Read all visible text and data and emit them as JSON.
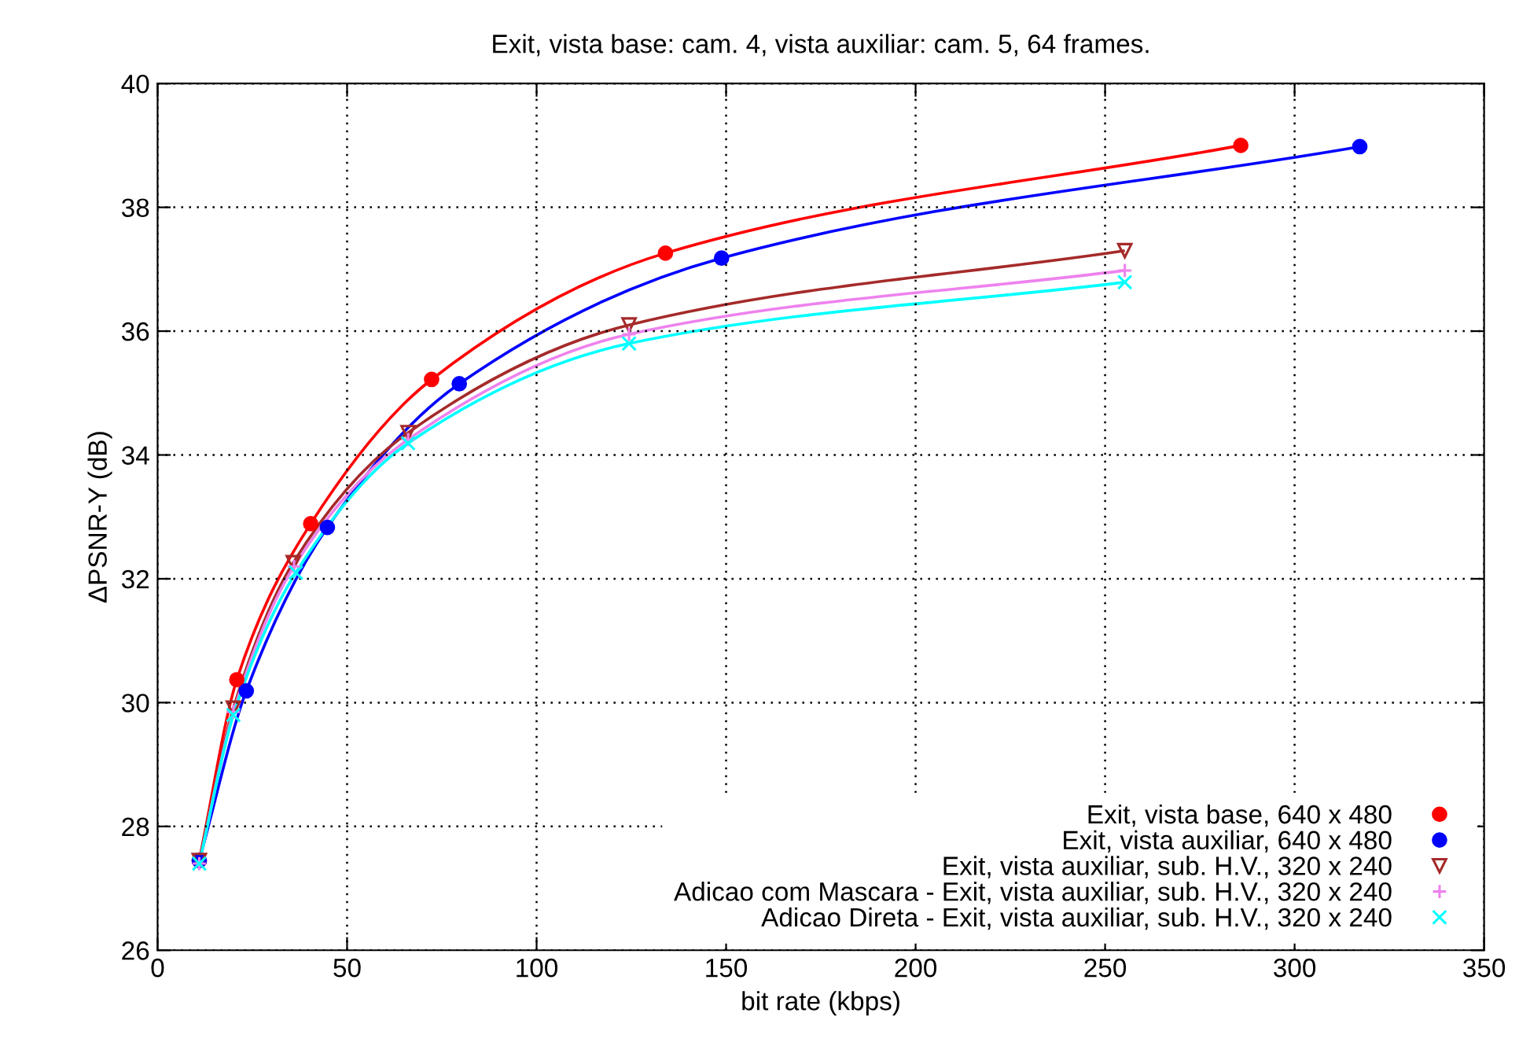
{
  "chart_data": {
    "type": "line",
    "title": "Exit, vista base: cam. 4, vista auxiliar: cam. 5, 64 frames.",
    "xlabel": "bit rate (kbps)",
    "ylabel": "ΔPSNR-Y (dB)",
    "xlim": [
      0,
      350
    ],
    "ylim": [
      26,
      40
    ],
    "xticks": [
      0,
      50,
      100,
      150,
      200,
      250,
      300,
      350
    ],
    "yticks": [
      26,
      28,
      30,
      32,
      34,
      36,
      38,
      40
    ],
    "grid": true,
    "legend": "bottom right",
    "line_style": "solid",
    "series": [
      {
        "name": "Exit, vista base, 640 x 480",
        "color": "#ff0000",
        "marker": "circle",
        "x": [
          11,
          20.9,
          40.4,
          72.3,
          134,
          285.8
        ],
        "values": [
          27.45,
          30.37,
          32.89,
          35.22,
          37.26,
          39.0
        ]
      },
      {
        "name": "Exit, vista auxiliar, 640 x 480",
        "color": "#0000ff",
        "marker": "circle",
        "x": [
          11,
          23.4,
          44.8,
          79.6,
          148.8,
          317.2
        ],
        "values": [
          27.45,
          30.19,
          32.83,
          35.15,
          37.18,
          38.98
        ]
      },
      {
        "name": "Exit, vista auxiliar, sub. H.V., 320 x 240",
        "color": "#a52a2a",
        "marker": "triangle_down",
        "x": [
          11,
          20,
          35.8,
          66.1,
          124.4,
          255.2
        ],
        "values": [
          27.45,
          29.91,
          32.26,
          34.36,
          36.1,
          37.3
        ]
      },
      {
        "name": "Adicao com Mascara - Exit, vista auxiliar, sub. H.V., 320 x 240",
        "color": "#ee82ee",
        "marker": "plus",
        "x": [
          11,
          20,
          36,
          66.1,
          124.4,
          255.2
        ],
        "values": [
          27.4,
          29.85,
          32.2,
          34.25,
          35.95,
          36.98
        ]
      },
      {
        "name": "Adicao Direta - Exit, vista auxiliar, sub. H.V., 320 x 240",
        "color": "#00ffff",
        "marker": "cross",
        "x": [
          11,
          20,
          36.5,
          66.1,
          124.4,
          255.2
        ],
        "values": [
          27.4,
          29.8,
          32.1,
          34.19,
          35.8,
          36.79
        ]
      }
    ]
  }
}
